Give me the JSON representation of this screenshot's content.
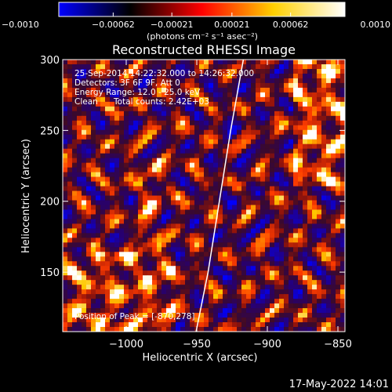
{
  "chart_data": {
    "type": "heatmap",
    "title": "Reconstructed RHESSI Image",
    "xlabel": "Heliocentric X (arcsec)",
    "ylabel": "Heliocentric Y (arcsec)",
    "xlim": [
      -1045,
      -845
    ],
    "ylim": [
      108,
      300
    ],
    "xticks": [
      {
        "value": -1000,
        "label": "−1000"
      },
      {
        "value": -950,
        "label": "−950"
      },
      {
        "value": -900,
        "label": "−900"
      },
      {
        "value": -850,
        "label": "−850"
      }
    ],
    "yticks": [
      {
        "value": 150,
        "label": "150"
      },
      {
        "value": 200,
        "label": "200"
      },
      {
        "value": 250,
        "label": "250"
      },
      {
        "value": 300,
        "label": "300"
      }
    ],
    "colorbar": {
      "range": [
        -0.001,
        0.001
      ],
      "unit_label": "(photons cm⁻² s⁻¹ asec⁻²)",
      "ticks": [
        {
          "value": -0.001,
          "label": "−0.0010"
        },
        {
          "value": -0.00062,
          "label": "−0.00062"
        },
        {
          "value": -0.00021,
          "label": "−0.00021"
        },
        {
          "value": 0.00021,
          "label": "0.00021"
        },
        {
          "value": 0.00062,
          "label": "0.00062"
        },
        {
          "value": 0.001,
          "label": "0.0010"
        }
      ],
      "colors": [
        "#0000ff",
        "#000000",
        "#ff0000",
        "#ffd000",
        "#ffffff"
      ]
    },
    "annotations": {
      "time_range": "25-Sep-2014 14:22:32.000 to 14:26:32.000",
      "detectors": "Detectors: 3F 6F 9F, Att 0",
      "energy_range": "Energy Range: 12.0 - 25.0 keV",
      "method": "Clean",
      "total_counts": "Total counts: 2.42E+03",
      "peak_position": "Position of Peak = [-870,278]"
    },
    "limb_curve": [
      {
        "x": -950.5,
        "y": 108
      },
      {
        "x": -942,
        "y": 150
      },
      {
        "x": -934,
        "y": 200
      },
      {
        "x": -926,
        "y": 250
      },
      {
        "x": -917,
        "y": 300
      }
    ],
    "grid": false,
    "legend": "none"
  },
  "footer": {
    "timestamp": "17-May-2022 14:01"
  }
}
